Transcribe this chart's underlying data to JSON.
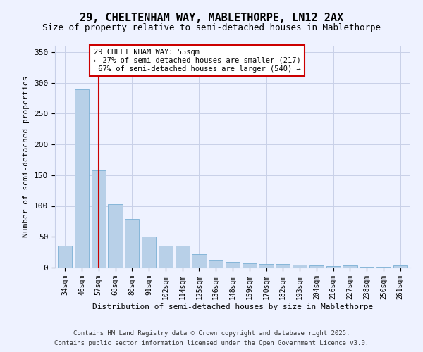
{
  "title1": "29, CHELTENHAM WAY, MABLETHORPE, LN12 2AX",
  "title2": "Size of property relative to semi-detached houses in Mablethorpe",
  "xlabel": "Distribution of semi-detached houses by size in Mablethorpe",
  "ylabel": "Number of semi-detached properties",
  "categories": [
    "34sqm",
    "46sqm",
    "57sqm",
    "68sqm",
    "80sqm",
    "91sqm",
    "102sqm",
    "114sqm",
    "125sqm",
    "136sqm",
    "148sqm",
    "159sqm",
    "170sqm",
    "182sqm",
    "193sqm",
    "204sqm",
    "216sqm",
    "227sqm",
    "238sqm",
    "250sqm",
    "261sqm"
  ],
  "values": [
    36,
    289,
    158,
    103,
    79,
    50,
    35,
    35,
    22,
    11,
    9,
    7,
    6,
    6,
    5,
    4,
    2,
    4,
    1,
    1,
    3
  ],
  "bar_color": "#b8d0e8",
  "bar_edge_color": "#7aafd4",
  "vline_x_index": 2,
  "vline_color": "#cc0000",
  "annotation_box_color": "#cc0000",
  "property_label": "29 CHELTENHAM WAY: 55sqm",
  "pct_smaller": 27,
  "pct_smaller_n": 217,
  "pct_larger": 67,
  "pct_larger_n": 540,
  "ylim": [
    0,
    360
  ],
  "yticks": [
    0,
    50,
    100,
    150,
    200,
    250,
    300,
    350
  ],
  "footnote1": "Contains HM Land Registry data © Crown copyright and database right 2025.",
  "footnote2": "Contains public sector information licensed under the Open Government Licence v3.0.",
  "bg_color": "#eef2ff",
  "grid_color": "#c8d0e8",
  "title1_fontsize": 11,
  "title2_fontsize": 9,
  "tick_fontsize": 7,
  "label_fontsize": 8,
  "annot_fontsize": 7.5,
  "footnote_fontsize": 6.5
}
